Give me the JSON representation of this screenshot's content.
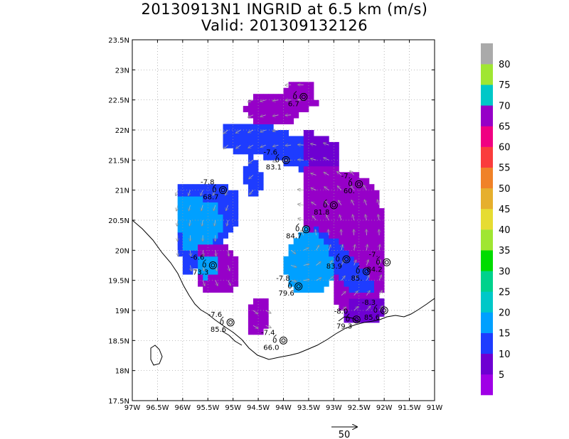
{
  "title": "20130913N1 INGRID at 6.5 km (m/s)",
  "subtitle": "Valid: 201309132126",
  "map": {
    "lon_range": [
      -97,
      -91
    ],
    "lat_range": [
      17.5,
      23.5
    ],
    "lon_ticks": [
      "97W",
      "96.5W",
      "96W",
      "95.5W",
      "95W",
      "94.5W",
      "94W",
      "93.5W",
      "93W",
      "92.5W",
      "92W",
      "91.5W",
      "91W"
    ],
    "lat_ticks": [
      "17.5N",
      "18N",
      "18.5N",
      "19N",
      "19.5N",
      "20N",
      "20.5N",
      "21N",
      "21.5N",
      "22N",
      "22.5N",
      "23N",
      "23.5N"
    ],
    "grid": "dotted"
  },
  "colorbar": {
    "labels": [
      "5",
      "10",
      "15",
      "20",
      "25",
      "30",
      "35",
      "40",
      "45",
      "50",
      "55",
      "60",
      "65",
      "70",
      "75",
      "80"
    ],
    "colors": [
      "#a000e6",
      "#6e00d2",
      "#1e3cff",
      "#00a0ff",
      "#00c8c8",
      "#00d28c",
      "#00dc00",
      "#a0e632",
      "#e6dc32",
      "#e6af2d",
      "#f08228",
      "#fa3c3c",
      "#f00082",
      "#9600c8",
      "#00c8c8",
      "#a0e632",
      "#aaaaaa"
    ]
  },
  "wind_region_colors": {
    "cell_purple": "#9600c8",
    "cell_violet": "#6e00d2",
    "cell_blue": "#1e3cff",
    "cell_sky": "#00a0ff"
  },
  "stations": [
    {
      "lon": -93.6,
      "lat": 22.55,
      "top": "",
      "bottom": "6.7"
    },
    {
      "lon": -93.95,
      "lat": 21.5,
      "top": "-7.6",
      "bottom": "83.1"
    },
    {
      "lon": -95.2,
      "lat": 21.0,
      "top": "-7.8",
      "bottom": "68.7"
    },
    {
      "lon": -92.5,
      "lat": 21.1,
      "top": "-7.",
      "bottom": "60."
    },
    {
      "lon": -93.0,
      "lat": 20.75,
      "top": "",
      "bottom": "81.8"
    },
    {
      "lon": -93.55,
      "lat": 20.35,
      "top": "",
      "bottom": "84.7"
    },
    {
      "lon": -95.4,
      "lat": 19.75,
      "top": "-6.6",
      "bottom": "73.3"
    },
    {
      "lon": -92.75,
      "lat": 19.85,
      "top": "",
      "bottom": "83.9"
    },
    {
      "lon": -92.35,
      "lat": 19.65,
      "top": "",
      "bottom": "85."
    },
    {
      "lon": -91.95,
      "lat": 19.8,
      "top": "-7.",
      "bottom": "84.2"
    },
    {
      "lon": -93.7,
      "lat": 19.4,
      "top": "-7.8",
      "bottom": "79.6"
    },
    {
      "lon": -95.05,
      "lat": 18.8,
      "top": "-7.6",
      "bottom": "85.6"
    },
    {
      "lon": -92.0,
      "lat": 19.0,
      "top": "-8.3",
      "bottom": "85.6"
    },
    {
      "lon": -92.55,
      "lat": 18.85,
      "top": "-8.0",
      "bottom": "79.3"
    },
    {
      "lon": -94.0,
      "lat": 18.5,
      "top": "-7.4",
      "bottom": "66.0"
    }
  ],
  "vector_scale": {
    "label": "50"
  }
}
